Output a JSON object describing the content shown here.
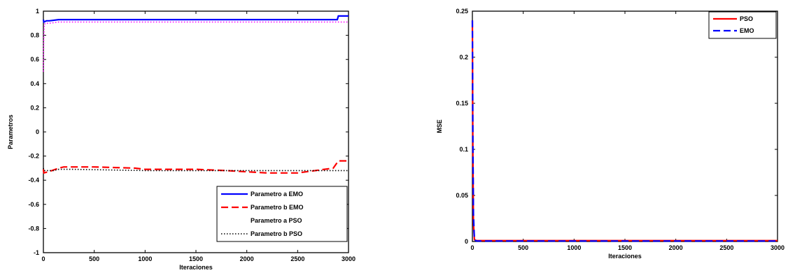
{
  "chart_data": [
    {
      "type": "line",
      "xlabel": "Iteraciones",
      "ylabel": "Parametros",
      "xlim": [
        0,
        3000
      ],
      "ylim": [
        -1,
        1
      ],
      "xticks": [
        0,
        500,
        1000,
        1500,
        2000,
        2500,
        3000
      ],
      "xtick_labels": [
        "0",
        "500",
        "1000",
        "1500",
        "2000",
        "2500",
        "3000"
      ],
      "yticks": [
        -1,
        -0.8,
        -0.6,
        -0.4,
        -0.2,
        0,
        0.2,
        0.4,
        0.6,
        0.8,
        1
      ],
      "ytick_labels": [
        "-1",
        "-0.8",
        "-0.6",
        "-0.4",
        "-0.2",
        "0",
        "0.2",
        "0.4",
        "0.6",
        "0.8",
        "1"
      ],
      "grid": false,
      "legend_position": "bottom-right",
      "series": [
        {
          "name": "Parametro a EMO",
          "color": "#0000ff",
          "style": "solid",
          "x": [
            0,
            5,
            30,
            60,
            150,
            200,
            600,
            1000,
            2000,
            2500,
            2890,
            2900,
            3000
          ],
          "y": [
            0.93,
            0.91,
            0.92,
            0.92,
            0.93,
            0.93,
            0.93,
            0.93,
            0.93,
            0.93,
            0.93,
            0.96,
            0.96
          ]
        },
        {
          "name": "Parametro b EMO",
          "color": "#ff0000",
          "style": "dashed",
          "x": [
            0,
            5,
            50,
            150,
            200,
            500,
            900,
            1000,
            1500,
            1800,
            2000,
            2200,
            2500,
            2850,
            2900,
            3000
          ],
          "y": [
            -0.31,
            -0.34,
            -0.33,
            -0.3,
            -0.29,
            -0.29,
            -0.3,
            -0.31,
            -0.31,
            -0.32,
            -0.33,
            -0.34,
            -0.34,
            -0.3,
            -0.24,
            -0.24
          ]
        },
        {
          "name": "Parametro a PSO",
          "color": "#ff00ff",
          "style": "dotted",
          "x": [
            0,
            3,
            8,
            20,
            60,
            150,
            500,
            1000,
            2000,
            2500,
            3000
          ],
          "y": [
            0.5,
            0.75,
            0.89,
            0.9,
            0.9,
            0.91,
            0.91,
            0.91,
            0.91,
            0.91,
            0.91
          ],
          "visible_line": true
        },
        {
          "name": "Parametro b PSO",
          "color": "#000000",
          "style": "dotted",
          "x": [
            0,
            5,
            100,
            150,
            300,
            1000,
            2000,
            3000
          ],
          "y": [
            -0.3,
            -0.32,
            -0.32,
            -0.31,
            -0.31,
            -0.32,
            -0.32,
            -0.32
          ]
        }
      ]
    },
    {
      "type": "line",
      "xlabel": "Iteraciones",
      "ylabel": "MSE",
      "xlim": [
        0,
        3000
      ],
      "ylim": [
        0,
        0.25
      ],
      "xticks": [
        0,
        500,
        1000,
        1500,
        2000,
        2500,
        3000
      ],
      "xtick_labels": [
        "0",
        "500",
        "1000",
        "1500",
        "2000",
        "2500",
        "3000"
      ],
      "yticks": [
        0,
        0.05,
        0.1,
        0.15,
        0.2,
        0.25
      ],
      "ytick_labels": [
        "0",
        "0.05",
        "0.1",
        "0.15",
        "0.2",
        "0.25"
      ],
      "grid": false,
      "legend_position": "top-right",
      "series": [
        {
          "name": "PSO",
          "color": "#ff0000",
          "style": "solid",
          "x": [
            0,
            5,
            10,
            20,
            40,
            3000
          ],
          "y": [
            0.24,
            0.1,
            0.02,
            0.002,
            0.001,
            0.001
          ]
        },
        {
          "name": "EMO",
          "color": "#0000ff",
          "style": "dashed",
          "x": [
            0,
            5,
            10,
            20,
            40,
            3000
          ],
          "y": [
            0.24,
            0.11,
            0.03,
            0.002,
            0.0005,
            0.0005
          ]
        }
      ]
    }
  ]
}
